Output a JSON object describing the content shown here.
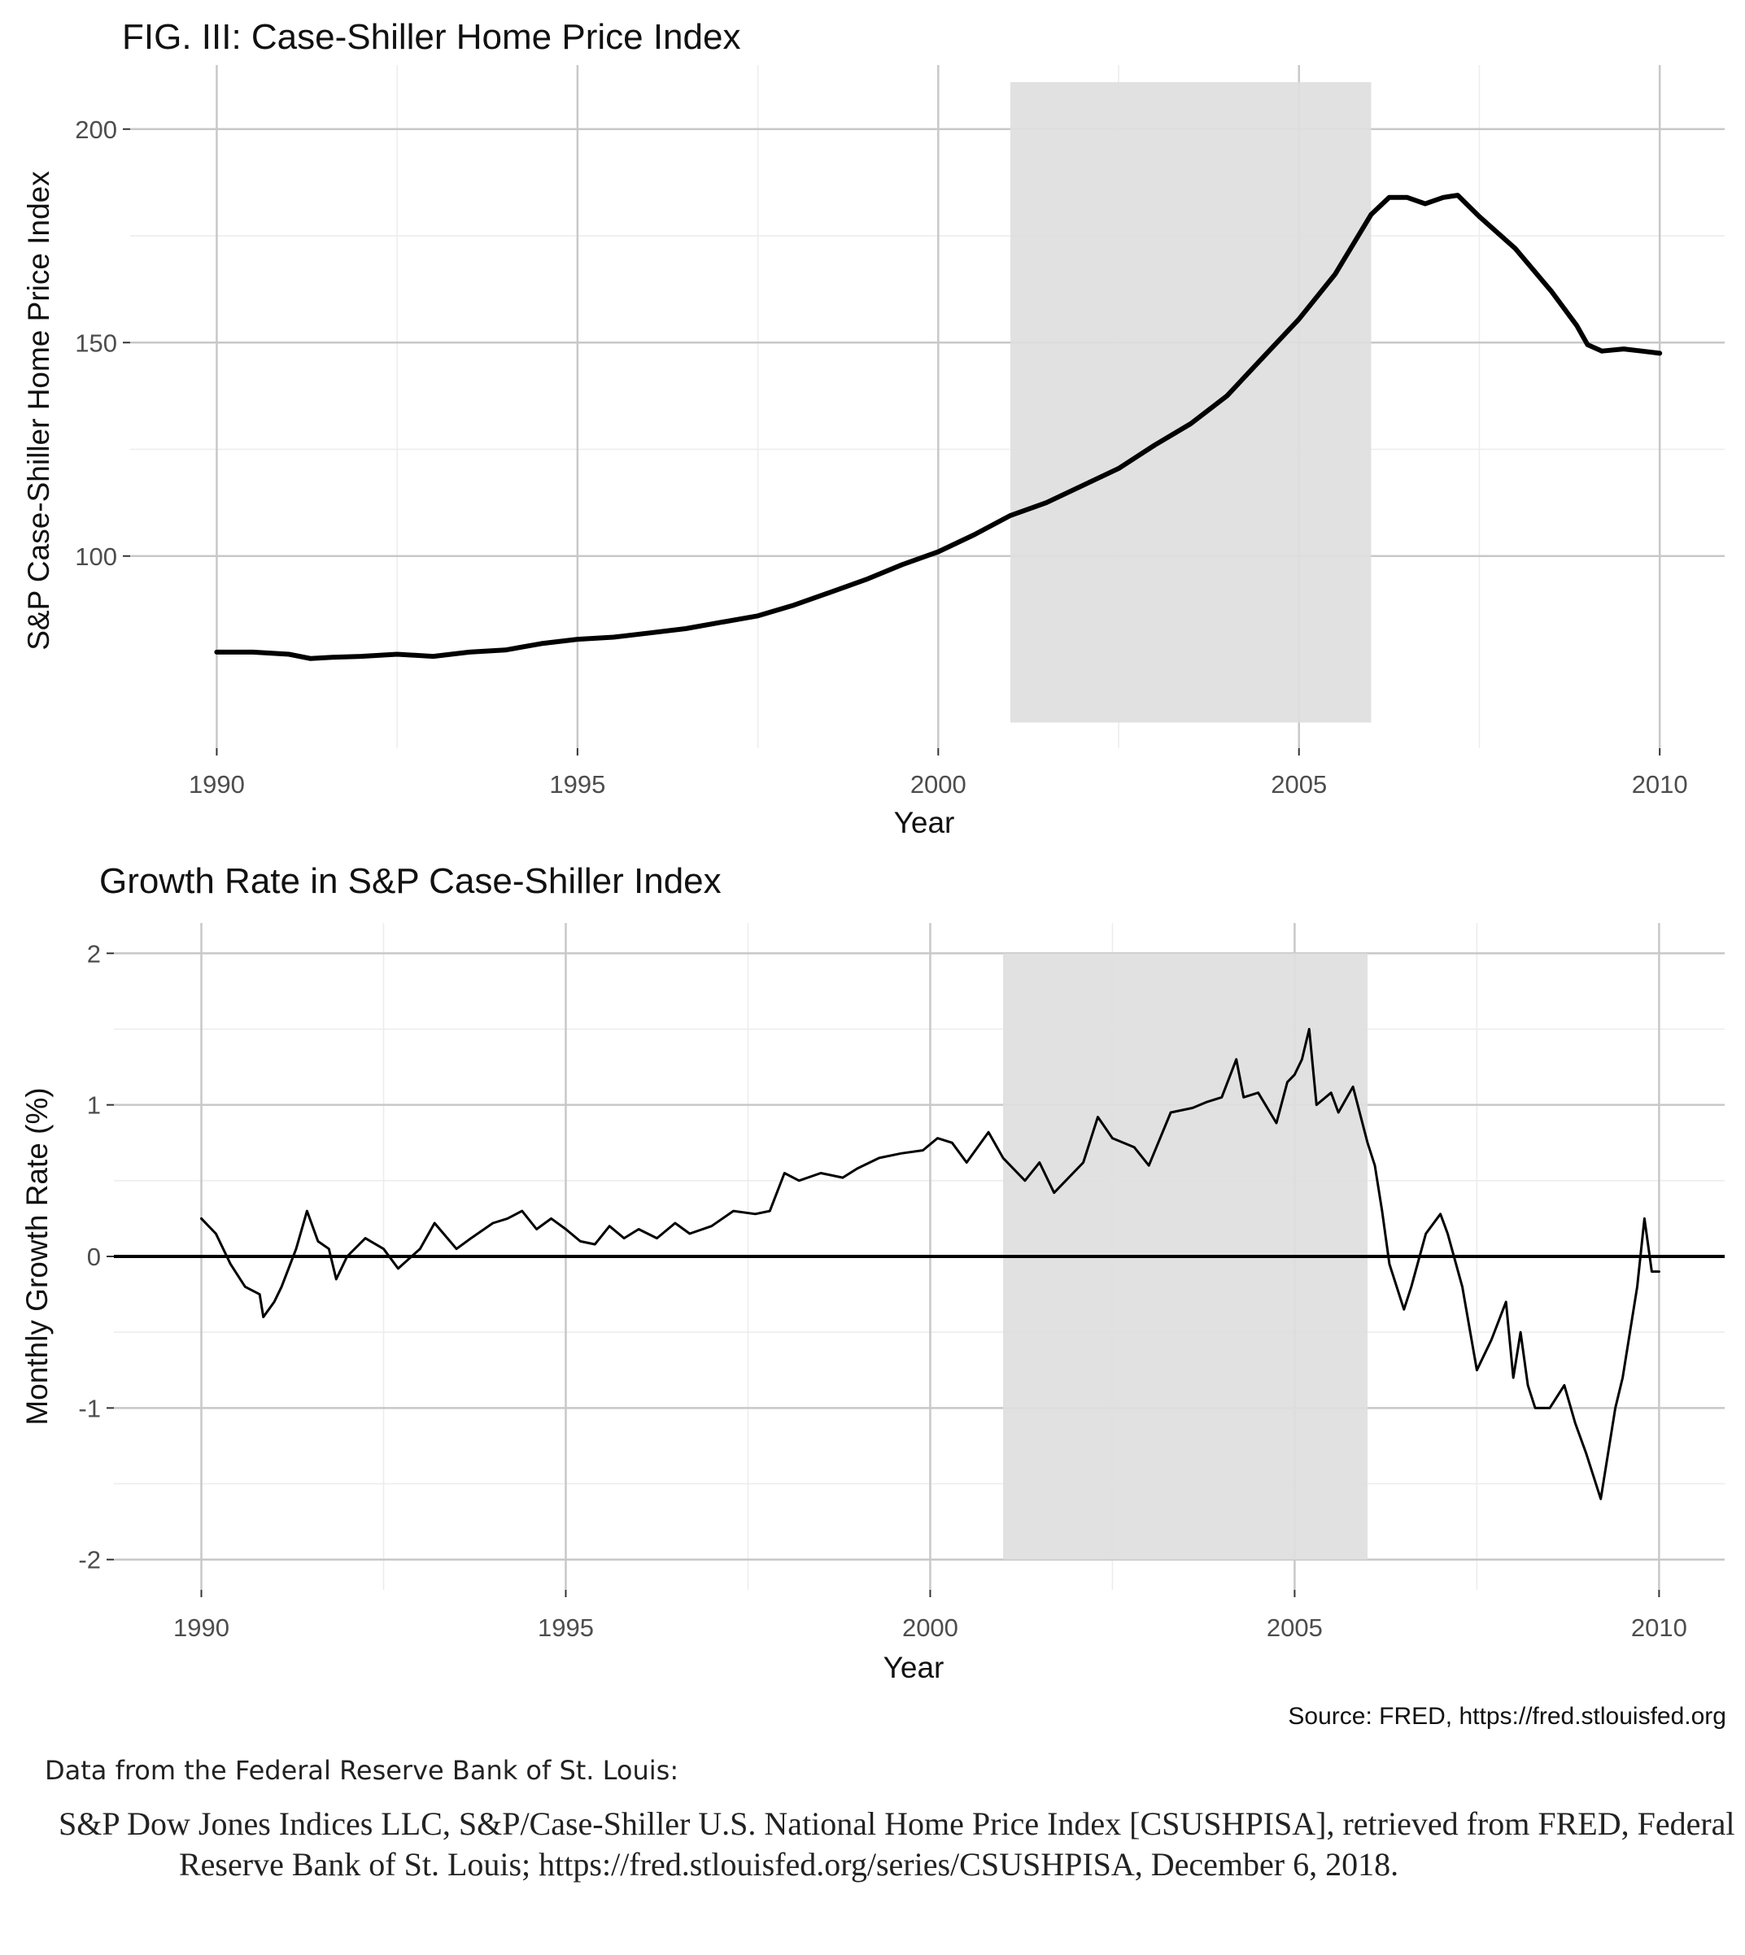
{
  "chart_data": [
    {
      "type": "line",
      "title": "FIG. III: Case-Shiller Home Price Index",
      "xlabel": "Year",
      "ylabel": "S&P Case-Shiller Home Price Index",
      "xlim": [
        1988.8,
        2010.9
      ],
      "ylim": [
        55,
        215
      ],
      "x_ticks": [
        1990,
        1995,
        2000,
        2005,
        2010
      ],
      "y_ticks": [
        100,
        150,
        200
      ],
      "grid": true,
      "shaded_region": {
        "x_start": 2001.0,
        "x_end": 2006.0,
        "y_start": 61,
        "y_end": 211,
        "color": "#dedede"
      },
      "line_color": "#000000",
      "series": [
        {
          "x": [
            1990.0,
            1990.5,
            1991.0,
            1991.3,
            1991.6,
            1992.0,
            1992.5,
            1993.0,
            1993.5,
            1994.0,
            1994.5,
            1995.0,
            1995.5,
            1996.0,
            1996.5,
            1997.0,
            1997.5,
            1998.0,
            1998.5,
            1999.0,
            1999.5,
            2000.0,
            2000.5,
            2001.0,
            2001.5,
            2002.0,
            2002.5,
            2003.0,
            2003.5,
            2004.0,
            2004.5,
            2005.0,
            2005.5,
            2006.0,
            2006.25,
            2006.5,
            2006.75,
            2007.0,
            2007.2,
            2007.5,
            2008.0,
            2008.5,
            2008.85,
            2009.0,
            2009.2,
            2009.5,
            2009.75,
            2010.0
          ],
          "values": [
            77.5,
            77.5,
            77.0,
            76.0,
            76.3,
            76.5,
            77.0,
            76.5,
            77.5,
            78.0,
            79.5,
            80.5,
            81.0,
            82.0,
            83.0,
            84.5,
            86.0,
            88.5,
            91.5,
            94.5,
            98.0,
            101.0,
            105.0,
            109.5,
            112.5,
            116.5,
            120.5,
            126.0,
            131.0,
            137.5,
            146.5,
            155.5,
            166.0,
            180.0,
            184.0,
            184.0,
            182.5,
            184.0,
            184.5,
            179.5,
            172.0,
            162.0,
            154.0,
            149.5,
            148.0,
            148.5,
            148.0,
            147.5
          ]
        }
      ]
    },
    {
      "type": "line",
      "title": "Growth Rate in S&P Case-Shiller Index",
      "xlabel": "Year",
      "ylabel": "Monthly Growth Rate (%)",
      "xlim": [
        1988.8,
        2010.9
      ],
      "ylim": [
        -2.2,
        2.2
      ],
      "x_ticks": [
        1990,
        1995,
        2000,
        2005,
        2010
      ],
      "y_ticks": [
        -2,
        -1,
        0,
        1,
        2
      ],
      "grid": true,
      "shaded_region": {
        "x_start": 2001.0,
        "x_end": 2006.0,
        "y_start": -2.0,
        "y_end": 2.0,
        "color": "#dedede"
      },
      "reference_line": {
        "y": 0,
        "color": "#000000"
      },
      "line_color": "#000000",
      "series": [
        {
          "x": [
            1990.0,
            1990.2,
            1990.4,
            1990.6,
            1990.8,
            1990.85,
            1991.0,
            1991.1,
            1991.3,
            1991.45,
            1991.6,
            1991.75,
            1991.85,
            1992.0,
            1992.25,
            1992.5,
            1992.7,
            1993.0,
            1993.2,
            1993.5,
            1993.7,
            1994.0,
            1994.2,
            1994.4,
            1994.6,
            1994.8,
            1995.0,
            1995.2,
            1995.4,
            1995.6,
            1995.8,
            1996.0,
            1996.25,
            1996.5,
            1996.7,
            1997.0,
            1997.3,
            1997.6,
            1997.8,
            1998.0,
            1998.2,
            1998.5,
            1998.8,
            1999.0,
            1999.3,
            1999.6,
            1999.9,
            2000.1,
            2000.3,
            2000.5,
            2000.8,
            2001.0,
            2001.3,
            2001.5,
            2001.7,
            2001.9,
            2002.1,
            2002.3,
            2002.5,
            2002.8,
            2003.0,
            2003.3,
            2003.6,
            2003.8,
            2004.0,
            2004.2,
            2004.3,
            2004.5,
            2004.75,
            2004.9,
            2005.0,
            2005.1,
            2005.2,
            2005.3,
            2005.5,
            2005.6,
            2005.8,
            2006.0,
            2006.1,
            2006.2,
            2006.3,
            2006.5,
            2006.6,
            2006.8,
            2007.0,
            2007.1,
            2007.3,
            2007.5,
            2007.7,
            2007.9,
            2008.0,
            2008.1,
            2008.2,
            2008.3,
            2008.5,
            2008.7,
            2008.85,
            2009.0,
            2009.2,
            2009.4,
            2009.5,
            2009.7,
            2009.8,
            2009.9,
            2010.0
          ],
          "values": [
            0.25,
            0.15,
            -0.05,
            -0.2,
            -0.25,
            -0.4,
            -0.3,
            -0.2,
            0.05,
            0.3,
            0.1,
            0.05,
            -0.15,
            0.0,
            0.12,
            0.05,
            -0.08,
            0.05,
            0.22,
            0.05,
            0.12,
            0.22,
            0.25,
            0.3,
            0.18,
            0.25,
            0.18,
            0.1,
            0.08,
            0.2,
            0.12,
            0.18,
            0.12,
            0.22,
            0.15,
            0.2,
            0.3,
            0.28,
            0.3,
            0.55,
            0.5,
            0.55,
            0.52,
            0.58,
            0.65,
            0.68,
            0.7,
            0.78,
            0.75,
            0.62,
            0.82,
            0.65,
            0.5,
            0.62,
            0.42,
            0.52,
            0.62,
            0.92,
            0.78,
            0.72,
            0.6,
            0.95,
            0.98,
            1.02,
            1.05,
            1.3,
            1.05,
            1.08,
            0.88,
            1.15,
            1.2,
            1.3,
            1.5,
            1.0,
            1.08,
            0.95,
            1.12,
            0.75,
            0.6,
            0.3,
            -0.05,
            -0.35,
            -0.2,
            0.15,
            0.28,
            0.15,
            -0.2,
            -0.75,
            -0.55,
            -0.3,
            -0.8,
            -0.5,
            -0.85,
            -1.0,
            -1.0,
            -0.85,
            -1.1,
            -1.3,
            -1.6,
            -1.0,
            -0.8,
            -0.2,
            0.25,
            -0.1,
            -0.1
          ]
        }
      ]
    }
  ],
  "source_note": "Source: FRED, https://fred.stlouisfed.org",
  "footnote": {
    "heading": "Data from the Federal Reserve Bank of St. Louis:",
    "citation": "S&P Dow Jones Indices LLC, S&P/Case-Shiller U.S. National Home Price Index [CSUSHPISA], retrieved from FRED, Federal Reserve Bank of St. Louis; https://fred.stlouisfed.org/series/CSUSHPISA, December 6, 2018."
  }
}
